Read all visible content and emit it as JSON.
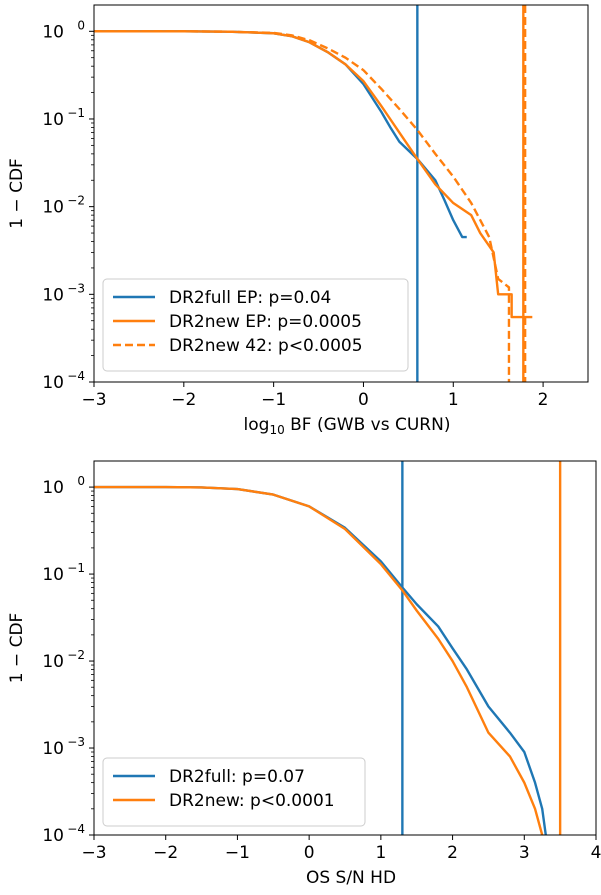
{
  "chart_data": [
    {
      "type": "line",
      "xlabel_main": "log",
      "xlabel_sub": "10",
      "xlabel_rest": " BF (GWB vs CURN)",
      "ylabel": "1 − CDF",
      "xlim": [
        -3,
        2.5
      ],
      "ylim_log10": [
        -4,
        0.3
      ],
      "yscale": "log",
      "x_ticks": [
        -3,
        -2,
        -1,
        0,
        1,
        2
      ],
      "x_tick_labels": [
        "−3",
        "−2",
        "−1",
        "0",
        "1",
        "2"
      ],
      "y_ticks_exp": [
        0,
        -1,
        -2,
        -3,
        -4
      ],
      "y_tick_bases": [
        "10",
        "10",
        "10",
        "10",
        "10"
      ],
      "y_tick_exps": [
        "0",
        "−1",
        "−2",
        "−3",
        "−4"
      ],
      "legend_position": "lower-left",
      "series": [
        {
          "name": "DR2full EP: p=0.04",
          "color": "#1f77b4",
          "style": "solid",
          "points": [
            [
              -3,
              1.0
            ],
            [
              -2,
              1.0
            ],
            [
              -1.5,
              0.99
            ],
            [
              -1,
              0.95
            ],
            [
              -0.8,
              0.88
            ],
            [
              -0.6,
              0.75
            ],
            [
              -0.4,
              0.58
            ],
            [
              -0.2,
              0.42
            ],
            [
              0,
              0.25
            ],
            [
              0.2,
              0.12
            ],
            [
              0.3,
              0.08
            ],
            [
              0.4,
              0.055
            ],
            [
              0.6,
              0.035
            ],
            [
              0.8,
              0.02
            ],
            [
              0.9,
              0.012
            ],
            [
              1.0,
              0.007
            ],
            [
              1.1,
              0.0045
            ],
            [
              1.15,
              0.0045
            ]
          ],
          "observed_value": 0.6,
          "observed_label": "vertical line at observed value"
        },
        {
          "name": "DR2new EP: p=0.0005",
          "color": "#ff7f0e",
          "style": "solid",
          "points": [
            [
              -3,
              1.0
            ],
            [
              -2,
              1.0
            ],
            [
              -1.5,
              0.99
            ],
            [
              -1,
              0.95
            ],
            [
              -0.8,
              0.88
            ],
            [
              -0.6,
              0.75
            ],
            [
              -0.4,
              0.58
            ],
            [
              -0.2,
              0.42
            ],
            [
              0,
              0.27
            ],
            [
              0.2,
              0.14
            ],
            [
              0.4,
              0.07
            ],
            [
              0.6,
              0.035
            ],
            [
              0.8,
              0.018
            ],
            [
              1.0,
              0.011
            ],
            [
              1.2,
              0.008
            ],
            [
              1.3,
              0.005
            ],
            [
              1.45,
              0.003
            ],
            [
              1.5,
              0.001
            ],
            [
              1.65,
              0.001
            ],
            [
              1.65,
              0.00055
            ],
            [
              1.88,
              0.00055
            ]
          ],
          "observed_value": 1.78
        },
        {
          "name": "DR2new 42: p<0.0005",
          "color": "#ff7f0e",
          "style": "dashed",
          "points": [
            [
              -3,
              1.0
            ],
            [
              -2,
              1.0
            ],
            [
              -1.5,
              0.99
            ],
            [
              -1,
              0.96
            ],
            [
              -0.8,
              0.9
            ],
            [
              -0.6,
              0.79
            ],
            [
              -0.4,
              0.64
            ],
            [
              -0.2,
              0.5
            ],
            [
              0,
              0.36
            ],
            [
              0.2,
              0.22
            ],
            [
              0.4,
              0.13
            ],
            [
              0.6,
              0.075
            ],
            [
              0.8,
              0.04
            ],
            [
              1.0,
              0.022
            ],
            [
              1.2,
              0.011
            ],
            [
              1.4,
              0.0045
            ],
            [
              1.5,
              0.0015
            ],
            [
              1.62,
              0.0012
            ],
            [
              1.62,
              0.0001
            ]
          ],
          "observed_value": 1.8
        }
      ],
      "legend": [
        {
          "label": "DR2full EP: p=0.04",
          "color": "#1f77b4",
          "style": "solid"
        },
        {
          "label": "DR2new EP: p=0.0005",
          "color": "#ff7f0e",
          "style": "solid"
        },
        {
          "label": "DR2new 42: p<0.0005",
          "color": "#ff7f0e",
          "style": "dashed"
        }
      ]
    },
    {
      "type": "line",
      "xlabel": "OS S/N HD",
      "ylabel": "1 − CDF",
      "xlim": [
        -3,
        4
      ],
      "ylim_log10": [
        -4,
        0.3
      ],
      "yscale": "log",
      "x_ticks": [
        -3,
        -2,
        -1,
        0,
        1,
        2,
        3,
        4
      ],
      "x_tick_labels": [
        "−3",
        "−2",
        "−1",
        "0",
        "1",
        "2",
        "3",
        "4"
      ],
      "y_ticks_exp": [
        0,
        -1,
        -2,
        -3,
        -4
      ],
      "y_tick_bases": [
        "10",
        "10",
        "10",
        "10",
        "10"
      ],
      "y_tick_exps": [
        "0",
        "−1",
        "−2",
        "−3",
        "−4"
      ],
      "legend_position": "lower-left",
      "series": [
        {
          "name": "DR2full: p=0.07",
          "color": "#1f77b4",
          "style": "solid",
          "points": [
            [
              -3,
              1.0
            ],
            [
              -2,
              1.0
            ],
            [
              -1.5,
              0.99
            ],
            [
              -1,
              0.95
            ],
            [
              -0.5,
              0.82
            ],
            [
              0,
              0.6
            ],
            [
              0.5,
              0.34
            ],
            [
              1,
              0.14
            ],
            [
              1.3,
              0.07
            ],
            [
              1.5,
              0.045
            ],
            [
              1.8,
              0.025
            ],
            [
              2.0,
              0.014
            ],
            [
              2.2,
              0.008
            ],
            [
              2.5,
              0.003
            ],
            [
              2.8,
              0.0015
            ],
            [
              3.0,
              0.0009
            ],
            [
              3.15,
              0.0004
            ],
            [
              3.25,
              0.0002
            ],
            [
              3.3,
              0.0001
            ]
          ],
          "observed_value": 1.3
        },
        {
          "name": "DR2new: p<0.0001",
          "color": "#ff7f0e",
          "style": "solid",
          "points": [
            [
              -3,
              1.0
            ],
            [
              -2,
              1.0
            ],
            [
              -1.5,
              0.99
            ],
            [
              -1,
              0.95
            ],
            [
              -0.5,
              0.82
            ],
            [
              0,
              0.6
            ],
            [
              0.5,
              0.33
            ],
            [
              1,
              0.13
            ],
            [
              1.3,
              0.065
            ],
            [
              1.5,
              0.038
            ],
            [
              1.8,
              0.018
            ],
            [
              2.0,
              0.01
            ],
            [
              2.2,
              0.005
            ],
            [
              2.5,
              0.0015
            ],
            [
              2.8,
              0.0008
            ],
            [
              3.0,
              0.0004
            ],
            [
              3.15,
              0.0002
            ],
            [
              3.25,
              0.0001
            ]
          ],
          "observed_value": 3.5
        }
      ],
      "legend": [
        {
          "label": "DR2full: p=0.07",
          "color": "#1f77b4",
          "style": "solid"
        },
        {
          "label": "DR2new: p<0.0001",
          "color": "#ff7f0e",
          "style": "solid"
        }
      ]
    }
  ]
}
